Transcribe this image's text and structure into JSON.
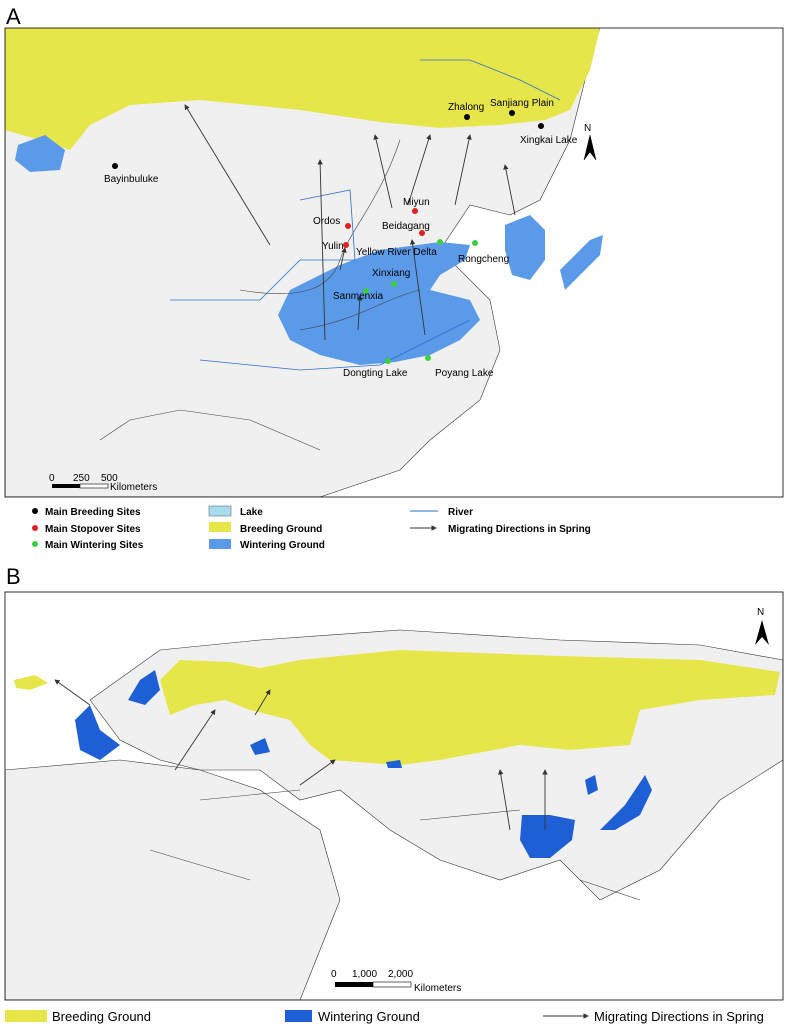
{
  "panel_a": {
    "label": "A",
    "north": "N",
    "sites": {
      "breeding": [
        "Bayinbuluke",
        "Zhalong",
        "Sanjiang Plain",
        "Xingkai Lake"
      ],
      "stopover": [
        "Miyun",
        "Ordos",
        "Beidagang",
        "Yulin"
      ],
      "wintering": [
        "Yellow River Delta",
        "Rongcheng",
        "Xinxiang",
        "Sanmenxia",
        "Dongting Lake",
        "Poyang Lake"
      ]
    },
    "scale_bar": {
      "ticks": [
        "0",
        "250",
        "500"
      ],
      "unit": "Kilometers"
    },
    "legend": [
      "Main Breeding Sites",
      "Main Stopover Sites",
      "Main Wintering Sites",
      "Lake",
      "Breeding Ground",
      "Wintering Ground",
      "River",
      "Migrating Directions in Spring"
    ]
  },
  "panel_b": {
    "label": "B",
    "north": "N",
    "scale_bar": {
      "ticks": [
        "0",
        "1,000",
        "2,000"
      ],
      "unit": "Kilometers"
    },
    "legend": [
      "Breeding Ground",
      "Wintering Ground",
      "Migrating Directions in Spring"
    ]
  }
}
